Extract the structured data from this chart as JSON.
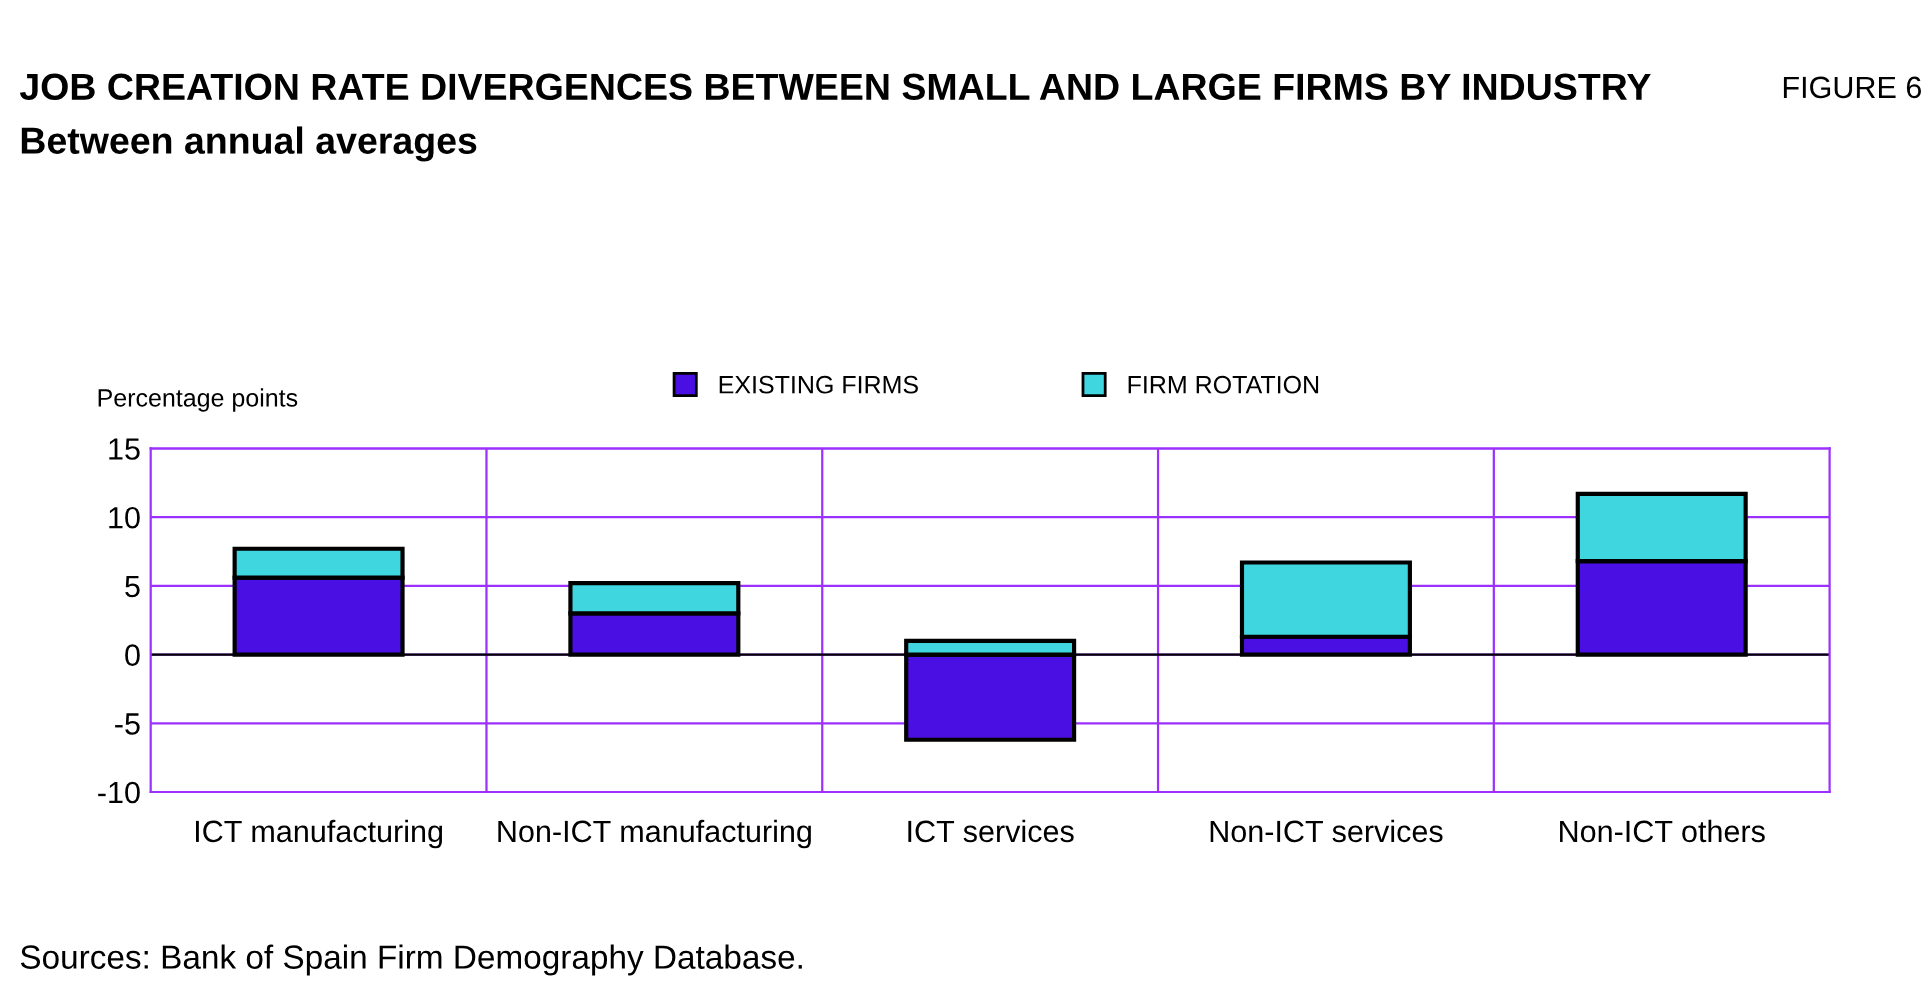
{
  "chart_data": {
    "type": "bar",
    "title": "JOB CREATION RATE DIVERGENCES BETWEEN SMALL AND LARGE FIRMS BY INDUSTRY",
    "subtitle": "Between annual averages",
    "ylabel": "Percentage points",
    "annotations": [
      "FIGURE 6",
      "Sources: Bank of Spain Firm Demography Database."
    ],
    "categories": [
      "ICT manufacturing",
      "Non-ICT manufacturing",
      "ICT services",
      "Non-ICT services",
      "Non-ICT others"
    ],
    "series": [
      {
        "name": "EXISTING FIRMS",
        "color": "#4a0fe2",
        "values": [
          5.6,
          3.0,
          -6.2,
          1.3,
          6.8
        ]
      },
      {
        "name": "FIRM ROTATION",
        "color": "#3fd6e0",
        "values": [
          2.1,
          2.2,
          1.0,
          5.4,
          4.9
        ]
      }
    ],
    "stacked": true,
    "ylim": [
      -10,
      15
    ],
    "yticks": [
      -10,
      -5,
      0,
      5,
      10,
      15
    ],
    "grid": true,
    "legend": "top"
  }
}
